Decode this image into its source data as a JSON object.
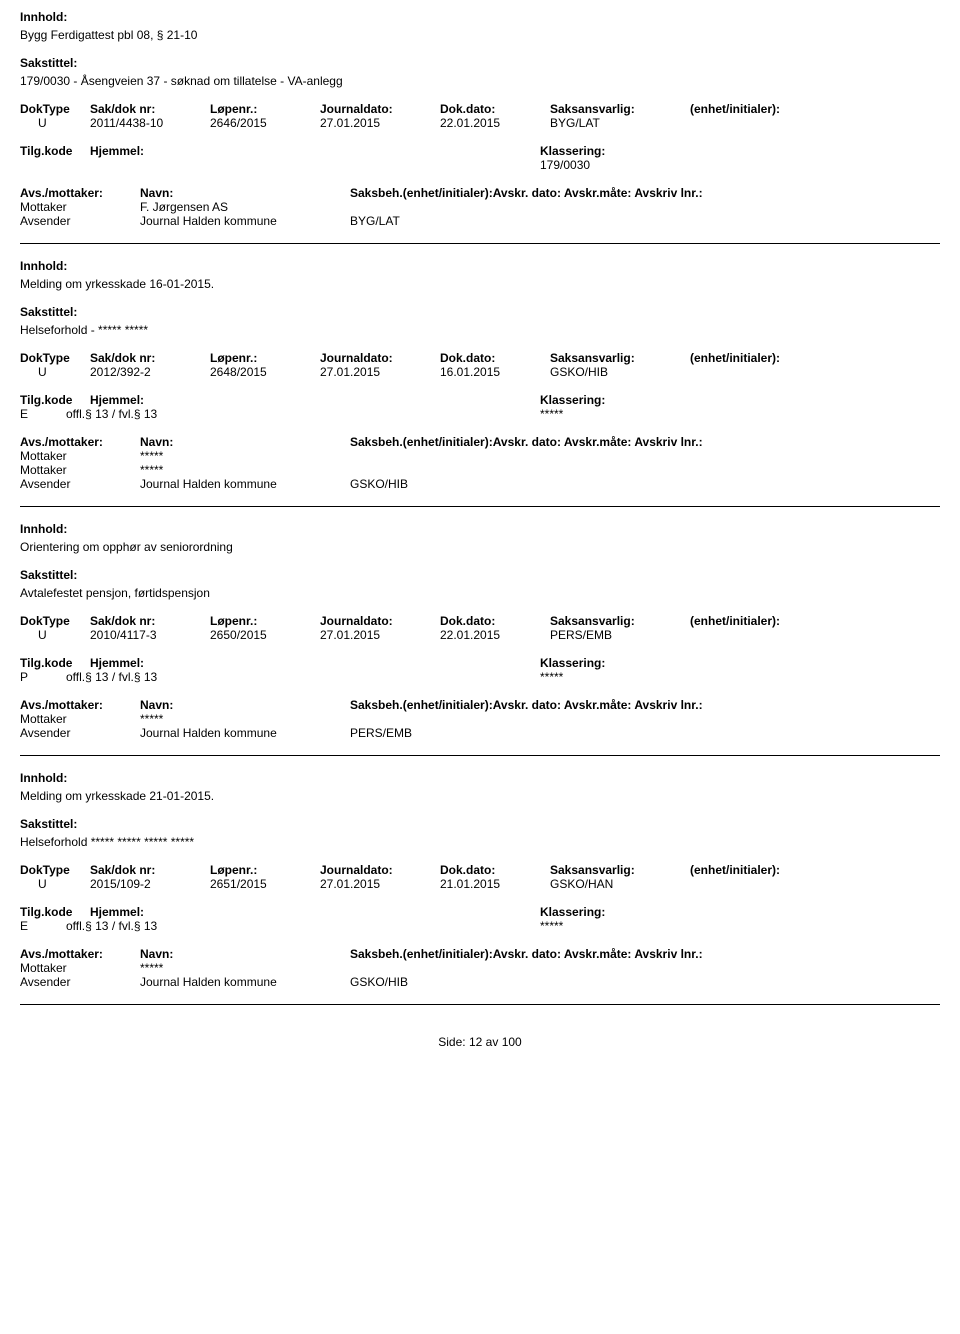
{
  "labels": {
    "innhold": "Innhold:",
    "sakstittel": "Sakstittel:",
    "doktype": "DokType",
    "sakdok": "Sak/dok nr:",
    "lopenr": "Løpenr.:",
    "journaldato": "Journaldato:",
    "dokdato": "Dok.dato:",
    "saksansvarlig": "Saksansvarlig:",
    "enhet": "(enhet/initialer):",
    "tilgkode": "Tilg.kode",
    "hjemmel": "Hjemmel:",
    "klassering": "Klassering:",
    "avsmottaker": "Avs./mottaker:",
    "navn": "Navn:",
    "saksbeh": "Saksbeh.(enhet/initialer):",
    "avskrdato": "Avskr. dato:",
    "avskrmate": "Avskr.måte:",
    "avskrivlnr": "Avskriv lnr.:",
    "mottaker": "Mottaker",
    "avsender": "Avsender",
    "side": "Side:",
    "av": "av"
  },
  "records": [
    {
      "innhold": "Bygg Ferdigattest pbl 08, § 21-10",
      "sakstittel": "179/0030 - Åsengveien 37 - søknad om tillatelse - VA-anlegg",
      "doktype": "U",
      "sakdok": "2011/4438-10",
      "lopenr": "2646/2015",
      "journaldato": "27.01.2015",
      "dokdato": "22.01.2015",
      "saksansvarlig": "BYG/LAT",
      "tilgkode": "",
      "hjemmel": "",
      "klassering": "179/0030",
      "parties": [
        {
          "role": "Mottaker",
          "name": "F. Jørgensen AS",
          "ref": ""
        },
        {
          "role": "Avsender",
          "name": "Journal Halden kommune",
          "ref": "BYG/LAT"
        }
      ]
    },
    {
      "innhold": "Melding om yrkesskade 16-01-2015.",
      "sakstittel": "Helseforhold - ***** *****",
      "doktype": "U",
      "sakdok": "2012/392-2",
      "lopenr": "2648/2015",
      "journaldato": "27.01.2015",
      "dokdato": "16.01.2015",
      "saksansvarlig": "GSKO/HIB",
      "tilgkode": "E",
      "hjemmel": "offl.§ 13 / fvl.§ 13",
      "klassering": "*****",
      "parties": [
        {
          "role": "Mottaker",
          "name": "*****",
          "ref": ""
        },
        {
          "role": "Mottaker",
          "name": "*****",
          "ref": ""
        },
        {
          "role": "Avsender",
          "name": "Journal Halden kommune",
          "ref": "GSKO/HIB"
        }
      ]
    },
    {
      "innhold": "Orientering om opphør av seniorordning",
      "sakstittel": "Avtalefestet pensjon, førtidspensjon",
      "doktype": "U",
      "sakdok": "2010/4117-3",
      "lopenr": "2650/2015",
      "journaldato": "27.01.2015",
      "dokdato": "22.01.2015",
      "saksansvarlig": "PERS/EMB",
      "tilgkode": "P",
      "hjemmel": "offl.§ 13 / fvl.§ 13",
      "klassering": "*****",
      "parties": [
        {
          "role": "Mottaker",
          "name": "*****",
          "ref": ""
        },
        {
          "role": "Avsender",
          "name": "Journal Halden kommune",
          "ref": "PERS/EMB"
        }
      ]
    },
    {
      "innhold": "Melding om yrkesskade 21-01-2015.",
      "sakstittel": "Helseforhold ***** ***** ***** *****",
      "doktype": "U",
      "sakdok": "2015/109-2",
      "lopenr": "2651/2015",
      "journaldato": "27.01.2015",
      "dokdato": "21.01.2015",
      "saksansvarlig": "GSKO/HAN",
      "tilgkode": "E",
      "hjemmel": "offl.§ 13 / fvl.§ 13",
      "klassering": "*****",
      "parties": [
        {
          "role": "Mottaker",
          "name": "*****",
          "ref": ""
        },
        {
          "role": "Avsender",
          "name": "Journal Halden kommune",
          "ref": "GSKO/HIB"
        }
      ]
    }
  ],
  "footer": {
    "page": "12",
    "total": "100"
  }
}
